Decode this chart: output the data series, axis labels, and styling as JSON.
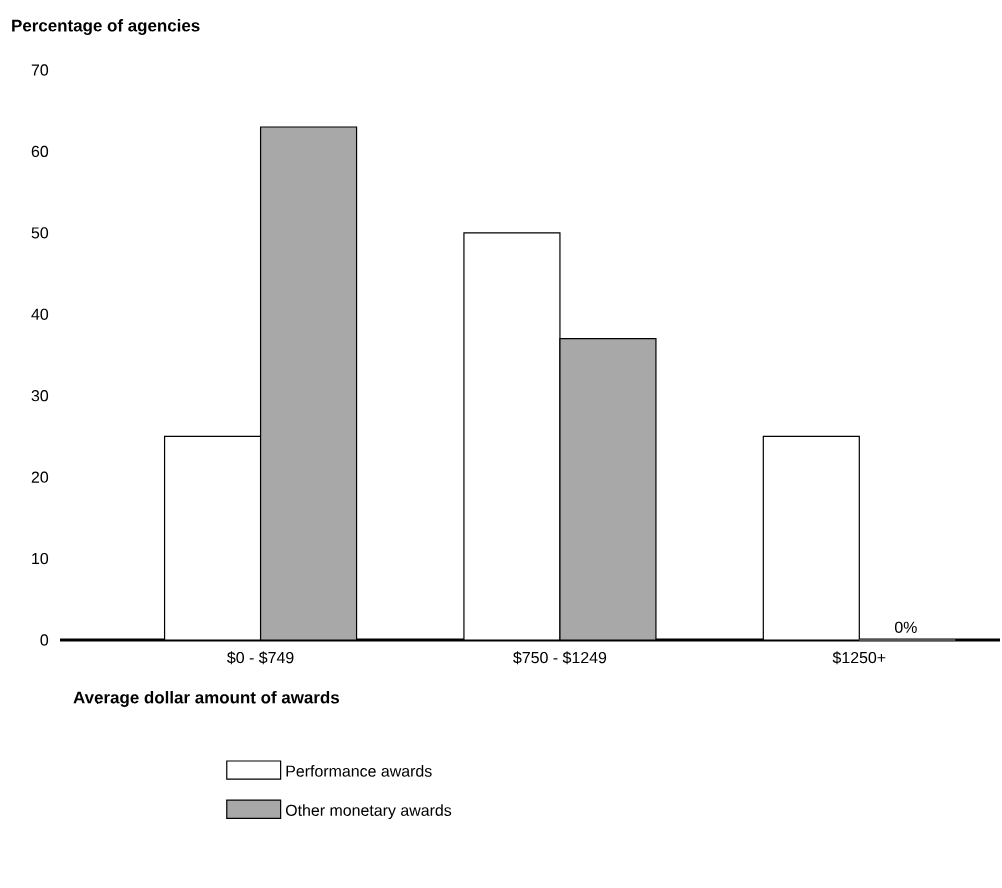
{
  "chart_data": {
    "type": "bar",
    "ylabel": "Percentage of agencies",
    "xlabel": "Average dollar amount of awards",
    "categories": [
      "$0 - $749",
      "$750 - $1249",
      "$1250+"
    ],
    "series": [
      {
        "name": "Performance awards",
        "color": "#ffffff",
        "values": [
          25,
          50,
          25
        ]
      },
      {
        "name": "Other monetary awards",
        "color": "#a8a8a8",
        "values": [
          63,
          37,
          0
        ]
      }
    ],
    "ylim": [
      0,
      70
    ],
    "yticks": [
      0,
      10,
      20,
      30,
      40,
      50,
      60,
      70
    ],
    "legend": "bottom",
    "annotations": [
      {
        "text": "0%",
        "x": "$1250+",
        "y": 0
      }
    ]
  }
}
